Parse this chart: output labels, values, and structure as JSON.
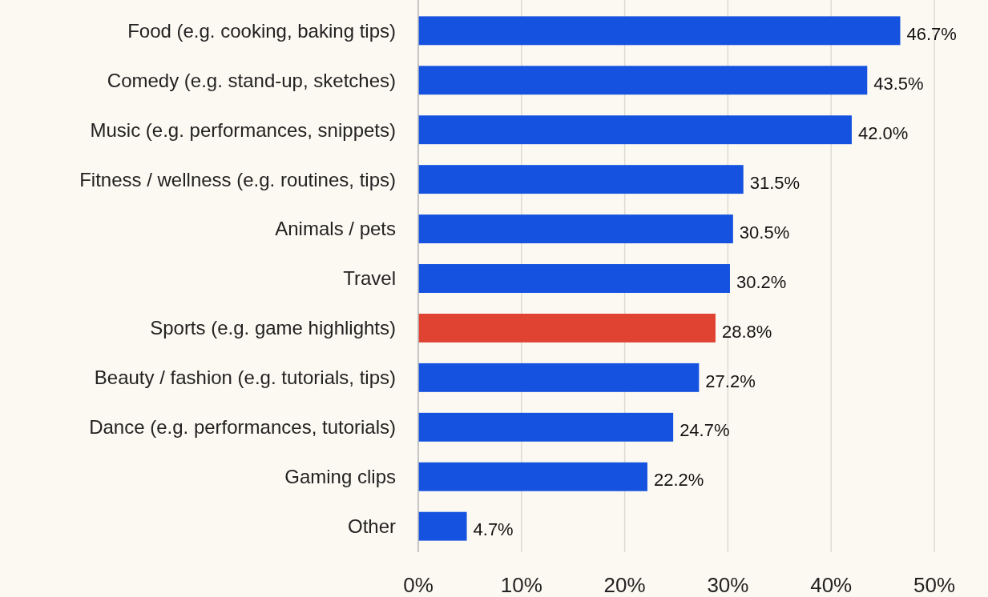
{
  "chart_data": {
    "type": "bar",
    "orientation": "horizontal",
    "categories": [
      "Food (e.g. cooking, baking tips)",
      "Comedy (e.g. stand-up, sketches)",
      "Music (e.g. performances, snippets)",
      "Fitness / wellness (e.g. routines, tips)",
      "Animals / pets",
      "Travel",
      "Sports (e.g. game highlights)",
      "Beauty / fashion (e.g. tutorials, tips)",
      "Dance (e.g. performances, tutorials)",
      "Gaming clips",
      "Other"
    ],
    "values": [
      46.7,
      43.5,
      42.0,
      31.5,
      30.5,
      30.2,
      28.8,
      27.2,
      24.7,
      22.2,
      4.7
    ],
    "value_labels": [
      "46.7%",
      "43.5%",
      "42.0%",
      "31.5%",
      "30.5%",
      "30.2%",
      "28.8%",
      "27.2%",
      "24.7%",
      "22.2%",
      "4.7%"
    ],
    "colors": [
      "#1652e0",
      "#1652e0",
      "#1652e0",
      "#1652e0",
      "#1652e0",
      "#1652e0",
      "#e04332",
      "#1652e0",
      "#1652e0",
      "#1652e0",
      "#1652e0"
    ],
    "xlim": [
      0,
      50
    ],
    "xticks": [
      {
        "value": 0,
        "label": "0%"
      },
      {
        "value": 10,
        "label": "10%"
      },
      {
        "value": 20,
        "label": "20%"
      },
      {
        "value": 30,
        "label": "30%"
      },
      {
        "value": 40,
        "label": "40%"
      },
      {
        "value": 50,
        "label": "50%"
      }
    ],
    "grid": "x"
  }
}
